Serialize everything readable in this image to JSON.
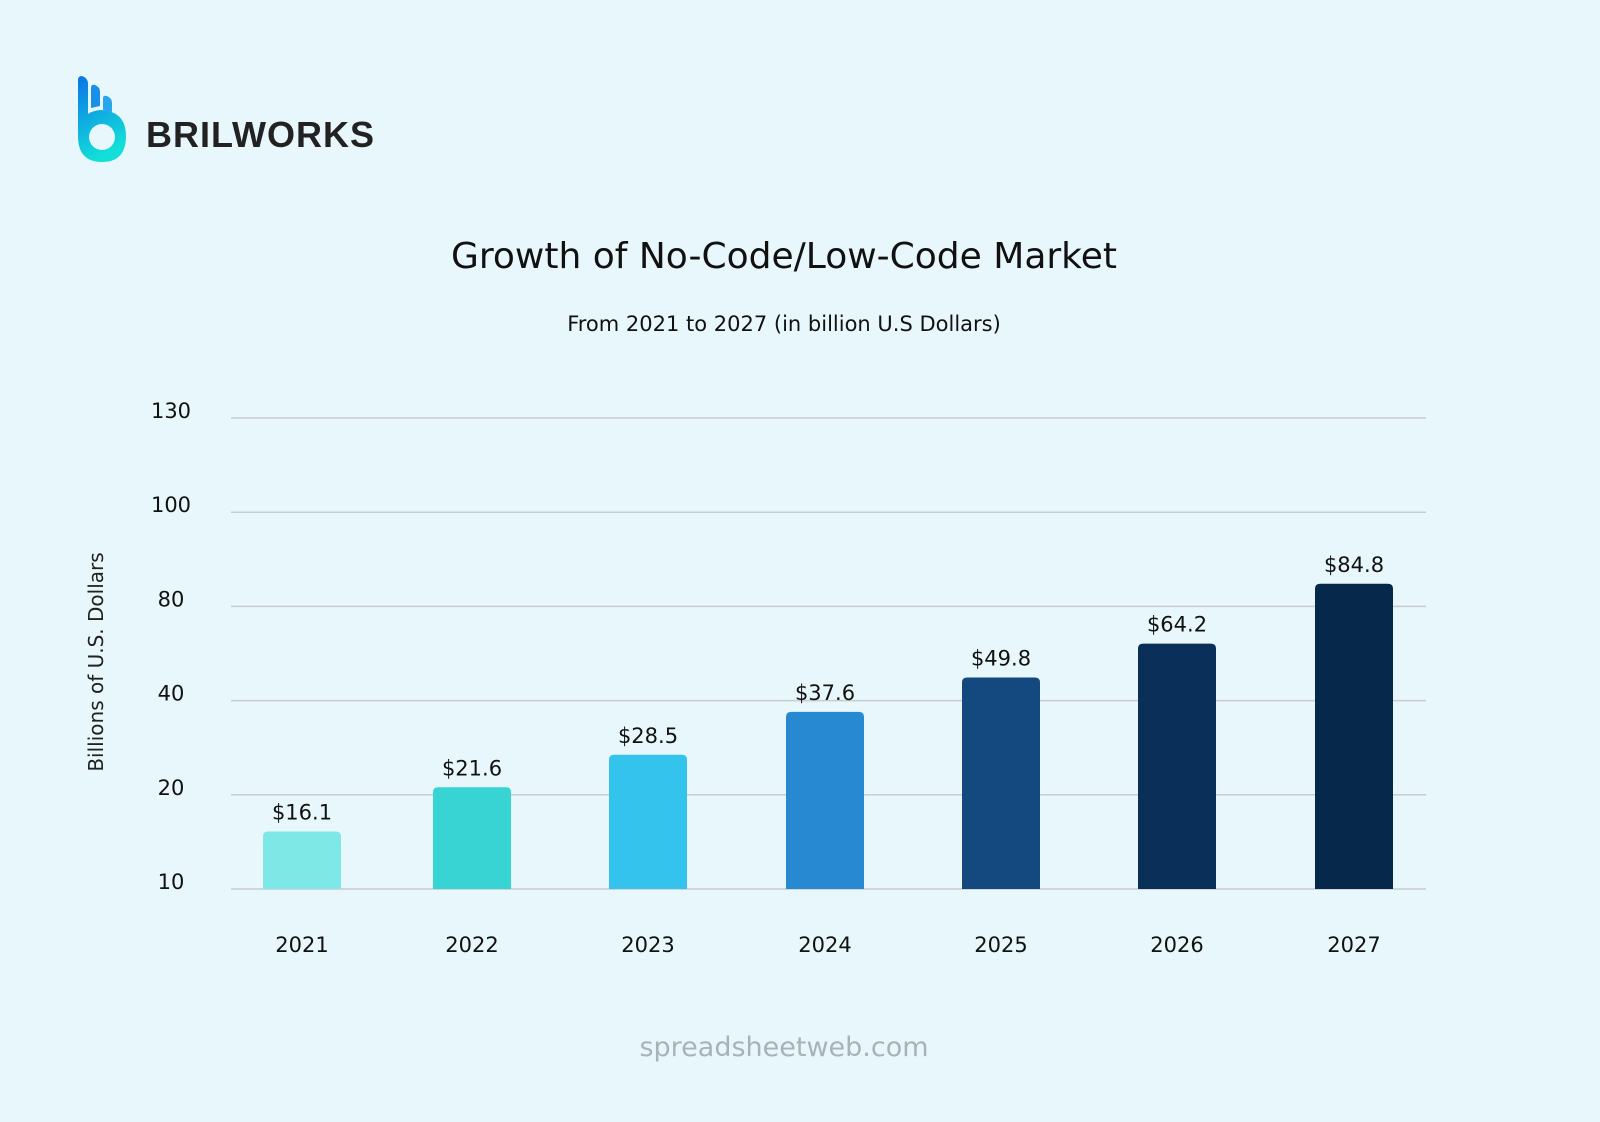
{
  "brand": {
    "name": "BRILWORKS"
  },
  "source": "spreadsheetweb.com",
  "chart_data": {
    "type": "bar",
    "title": "Growth of No-Code/Low-Code Market",
    "subtitle": "From 2021 to 2027 (in billion U.S Dollars)",
    "xlabel": "",
    "ylabel": "Billions of U.S. Dollars",
    "categories": [
      "2021",
      "2022",
      "2023",
      "2024",
      "2025",
      "2026",
      "2027"
    ],
    "values": [
      16.1,
      21.6,
      28.5,
      37.6,
      49.8,
      64.2,
      84.8
    ],
    "data_labels": [
      "$16.1",
      "$21.6",
      "$28.5",
      "$37.6",
      "$49.8",
      "$64.2",
      "$84.8"
    ],
    "y_ticks": [
      10,
      20,
      40,
      80,
      100,
      130
    ],
    "ylim": [
      10,
      130
    ],
    "grid": true,
    "colors": [
      "#7de8e6",
      "#38d4d4",
      "#33c3ec",
      "#2889d3",
      "#14497f",
      "#0a3059",
      "#06284a"
    ]
  }
}
